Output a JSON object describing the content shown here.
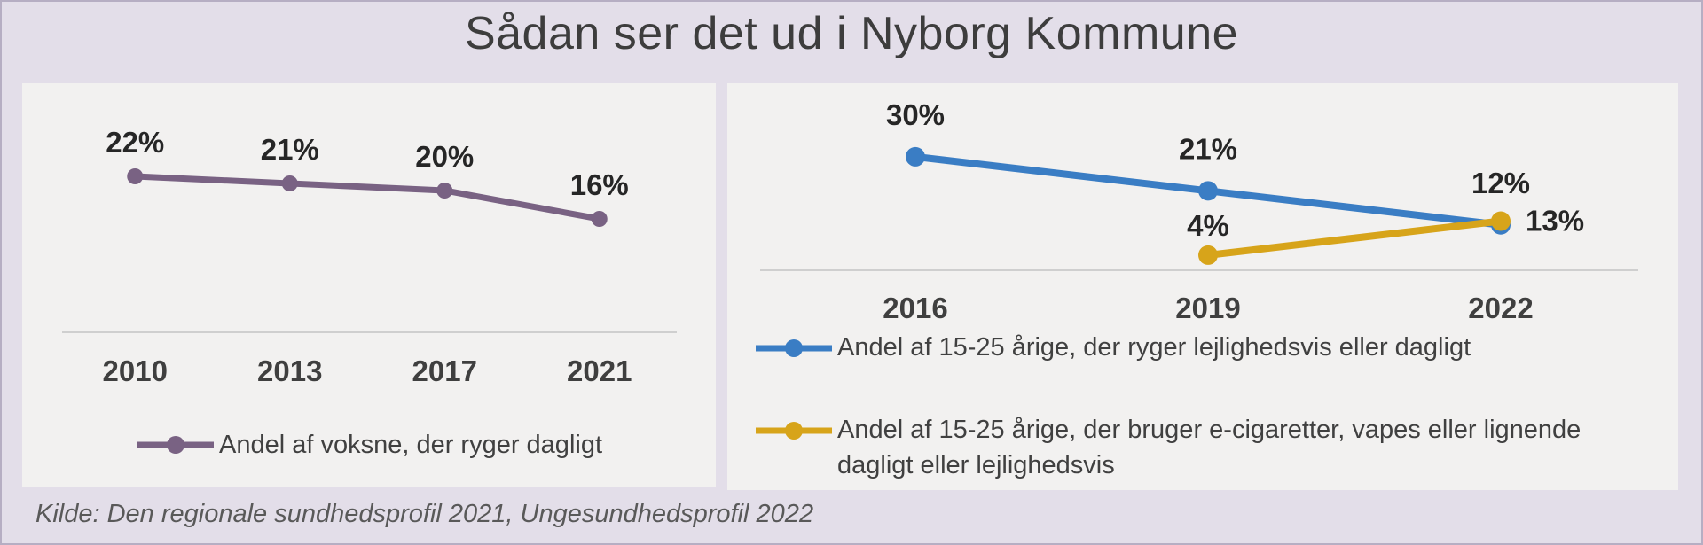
{
  "title": "Sådan ser det ud i Nyborg Kommune",
  "source": "Kilde: Den regionale sundhedsprofil 2021, Ungesundhedsprofil 2022",
  "colors": {
    "canvas_bg": "#e3dee9",
    "panel_bg": "#f2f1f0",
    "border": "#b6aec3",
    "purple_series": "#796283",
    "blue_series": "#3a7dc4",
    "gold_series": "#d7a41a",
    "axis_line": "#cfcfcf",
    "title_text": "#3d3d3d",
    "data_label_text": "#262626",
    "source_text": "#595959"
  },
  "chart_data": [
    {
      "type": "line",
      "title": "",
      "xlabel": "",
      "ylabel": "",
      "categories": [
        "2010",
        "2013",
        "2017",
        "2021"
      ],
      "series": [
        {
          "name": "Andel af voksne, der ryger dagligt",
          "color": "#796283",
          "values": [
            22,
            21,
            20,
            16
          ],
          "labels": [
            "22%",
            "21%",
            "20%",
            "16%"
          ]
        }
      ],
      "ylim": [
        0,
        35
      ],
      "grid": false,
      "legend_position": "bottom-center"
    },
    {
      "type": "line",
      "title": "",
      "xlabel": "",
      "ylabel": "",
      "categories": [
        "2016",
        "2019",
        "2022"
      ],
      "series": [
        {
          "name": "Andel af 15-25 årige, der ryger lejlighedsvis eller dagligt",
          "color": "#3a7dc4",
          "values": [
            30,
            21,
            12
          ],
          "labels": [
            "30%",
            "21%",
            "12%"
          ],
          "label_positions": [
            "above",
            "above",
            "above"
          ]
        },
        {
          "name": "Andel af 15-25 årige, der bruger e-cigaretter, vapes eller lignende dagligt eller lejlighedsvis",
          "color": "#d7a41a",
          "values": [
            null,
            4,
            13
          ],
          "labels": [
            null,
            "4%",
            "13%"
          ],
          "label_positions": [
            null,
            "above",
            "right"
          ],
          "label_dy": [
            null,
            -22,
            null
          ]
        }
      ],
      "ylim": [
        0,
        49
      ],
      "grid": false,
      "legend_position": "bottom-left"
    }
  ]
}
